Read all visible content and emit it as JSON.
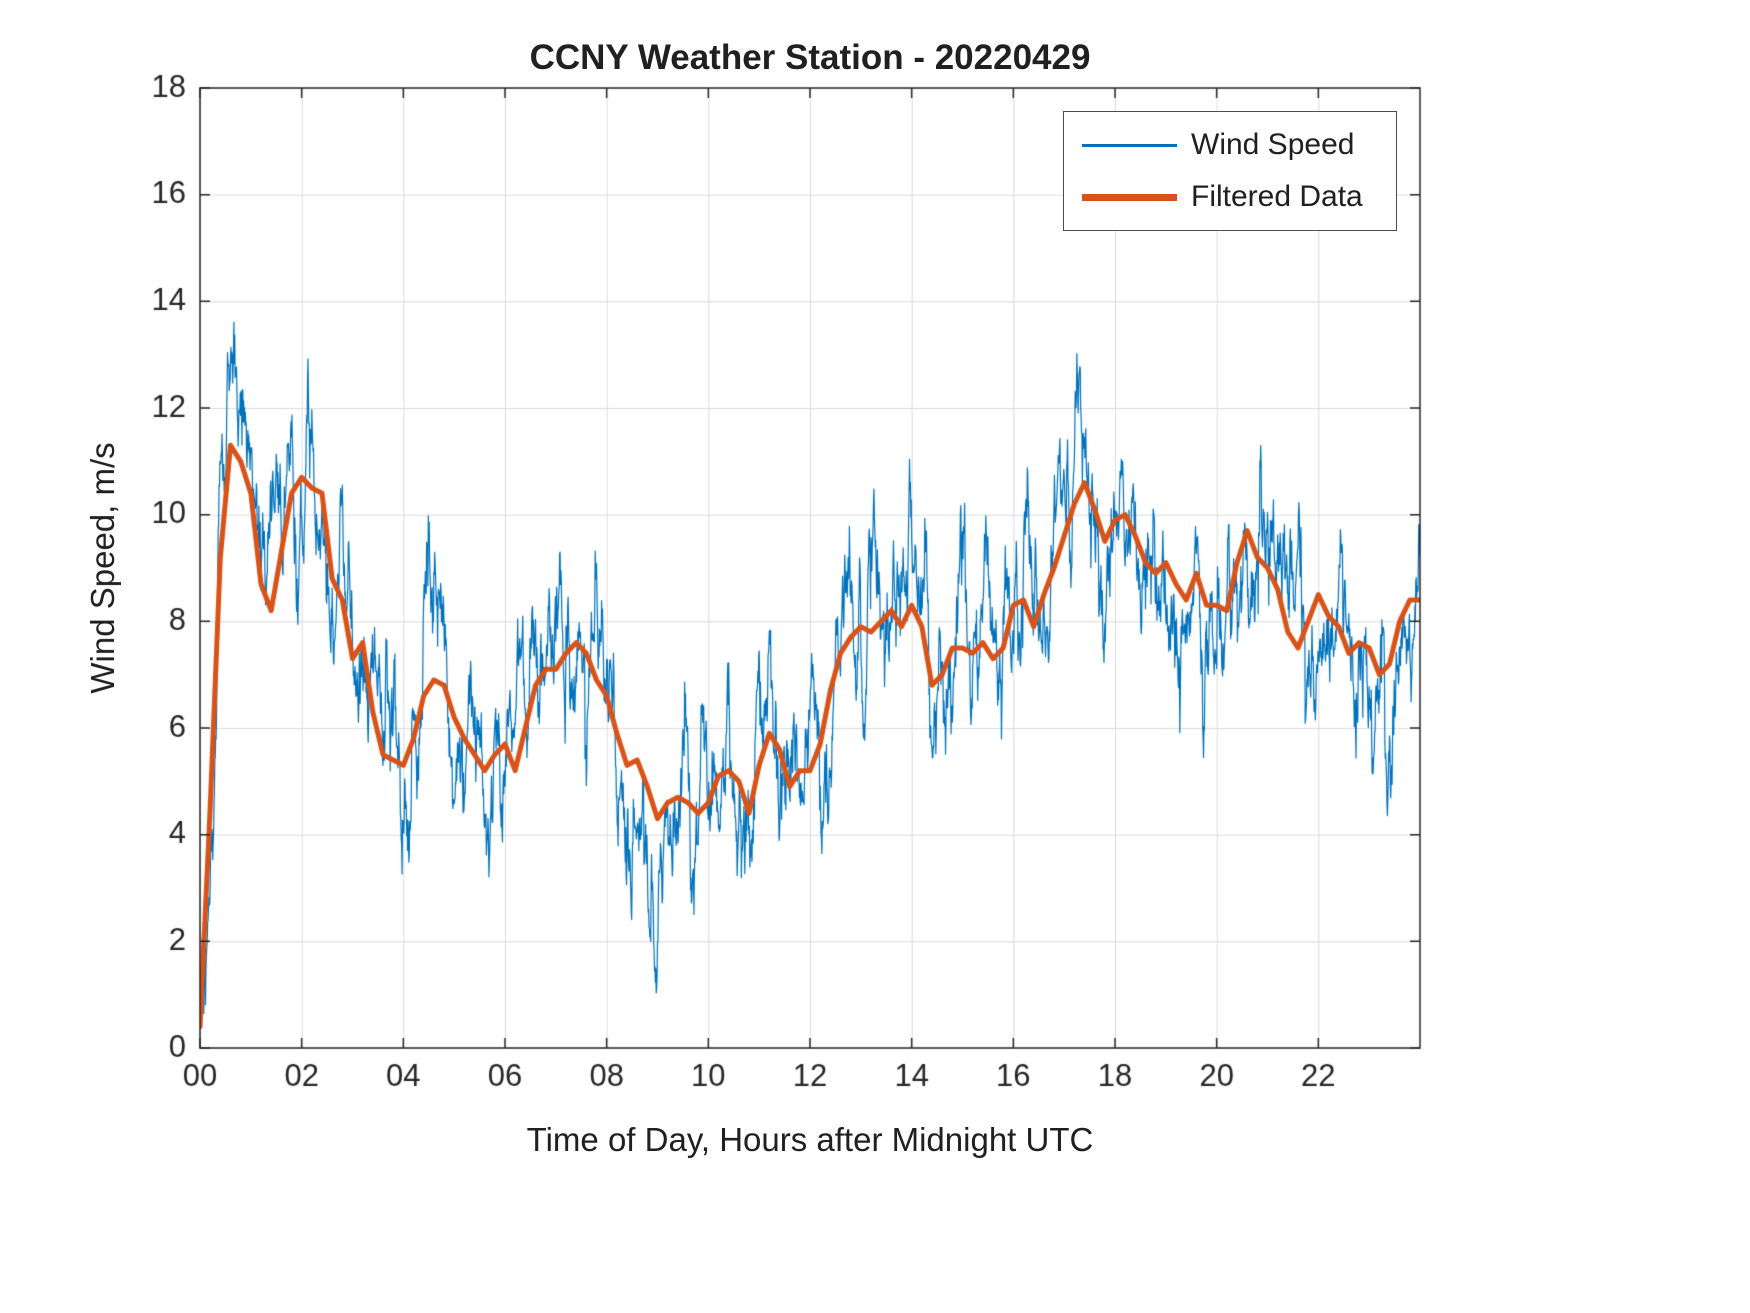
{
  "chart_data": {
    "type": "line",
    "title": "CCNY Weather Station - 20220429",
    "xlabel": "Time of Day, Hours after Midnight UTC",
    "ylabel": "Wind Speed, m/s",
    "xlim": [
      0,
      24
    ],
    "ylim": [
      0,
      18
    ],
    "x_ticks": [
      0,
      2,
      4,
      6,
      8,
      10,
      12,
      14,
      16,
      18,
      20,
      22
    ],
    "x_tick_labels": [
      "00",
      "02",
      "04",
      "06",
      "08",
      "10",
      "12",
      "14",
      "16",
      "18",
      "20",
      "22"
    ],
    "y_ticks": [
      0,
      2,
      4,
      6,
      8,
      10,
      12,
      14,
      16,
      18
    ],
    "y_tick_labels": [
      "0",
      "2",
      "4",
      "6",
      "8",
      "10",
      "12",
      "14",
      "16",
      "18"
    ],
    "grid": true,
    "grid_color": "#DBDBDB",
    "axes_color": "#262626",
    "background": "#FFFFFF",
    "legend": {
      "position": "northeast",
      "entries": [
        {
          "label": "Wind Speed",
          "color": "#0072BD",
          "linewidth": 3
        },
        {
          "label": "Filtered Data",
          "color": "#D95319",
          "linewidth": 7
        }
      ]
    },
    "series": [
      {
        "name": "Wind Speed",
        "color": "#0072BD",
        "linewidth": 1.2,
        "derived_from": "Filtered Data",
        "noise": {
          "seed": 20220429,
          "ar": 0.93,
          "sigma": 0.4,
          "spike_prob": 0.02,
          "spike_gain": 2.2,
          "samples_per_hour": 120,
          "min_clip": 0.15
        }
      },
      {
        "name": "Filtered Data",
        "color": "#D95319",
        "linewidth": 5,
        "step_hours": 0.2,
        "points": [
          [
            0.0,
            0.4
          ],
          [
            0.2,
            4.5
          ],
          [
            0.4,
            9.2
          ],
          [
            0.6,
            11.3
          ],
          [
            0.8,
            11.0
          ],
          [
            1.0,
            10.4
          ],
          [
            1.2,
            8.7
          ],
          [
            1.4,
            8.2
          ],
          [
            1.6,
            9.3
          ],
          [
            1.8,
            10.4
          ],
          [
            2.0,
            10.7
          ],
          [
            2.2,
            10.5
          ],
          [
            2.4,
            10.4
          ],
          [
            2.6,
            8.8
          ],
          [
            2.8,
            8.4
          ],
          [
            3.0,
            7.3
          ],
          [
            3.2,
            7.6
          ],
          [
            3.4,
            6.3
          ],
          [
            3.6,
            5.5
          ],
          [
            3.8,
            5.4
          ],
          [
            4.0,
            5.3
          ],
          [
            4.2,
            5.8
          ],
          [
            4.4,
            6.6
          ],
          [
            4.6,
            6.9
          ],
          [
            4.8,
            6.8
          ],
          [
            5.0,
            6.2
          ],
          [
            5.2,
            5.8
          ],
          [
            5.4,
            5.5
          ],
          [
            5.6,
            5.2
          ],
          [
            5.8,
            5.5
          ],
          [
            6.0,
            5.7
          ],
          [
            6.2,
            5.2
          ],
          [
            6.4,
            6.0
          ],
          [
            6.6,
            6.8
          ],
          [
            6.8,
            7.1
          ],
          [
            7.0,
            7.1
          ],
          [
            7.2,
            7.4
          ],
          [
            7.4,
            7.6
          ],
          [
            7.6,
            7.4
          ],
          [
            7.8,
            6.9
          ],
          [
            8.0,
            6.6
          ],
          [
            8.2,
            5.9
          ],
          [
            8.4,
            5.3
          ],
          [
            8.6,
            5.4
          ],
          [
            8.8,
            4.9
          ],
          [
            9.0,
            4.3
          ],
          [
            9.2,
            4.6
          ],
          [
            9.4,
            4.7
          ],
          [
            9.6,
            4.6
          ],
          [
            9.8,
            4.4
          ],
          [
            10.0,
            4.6
          ],
          [
            10.2,
            5.1
          ],
          [
            10.4,
            5.2
          ],
          [
            10.6,
            5.0
          ],
          [
            10.8,
            4.4
          ],
          [
            11.0,
            5.3
          ],
          [
            11.2,
            5.9
          ],
          [
            11.4,
            5.6
          ],
          [
            11.6,
            4.9
          ],
          [
            11.8,
            5.2
          ],
          [
            12.0,
            5.2
          ],
          [
            12.2,
            5.7
          ],
          [
            12.4,
            6.7
          ],
          [
            12.6,
            7.4
          ],
          [
            12.8,
            7.7
          ],
          [
            13.0,
            7.9
          ],
          [
            13.2,
            7.8
          ],
          [
            13.4,
            8.0
          ],
          [
            13.6,
            8.2
          ],
          [
            13.8,
            7.9
          ],
          [
            14.0,
            8.3
          ],
          [
            14.2,
            7.9
          ],
          [
            14.4,
            6.8
          ],
          [
            14.6,
            7.0
          ],
          [
            14.8,
            7.5
          ],
          [
            15.0,
            7.5
          ],
          [
            15.2,
            7.4
          ],
          [
            15.4,
            7.6
          ],
          [
            15.6,
            7.3
          ],
          [
            15.8,
            7.5
          ],
          [
            16.0,
            8.3
          ],
          [
            16.2,
            8.4
          ],
          [
            16.4,
            7.9
          ],
          [
            16.6,
            8.5
          ],
          [
            16.8,
            9.0
          ],
          [
            17.0,
            9.6
          ],
          [
            17.2,
            10.2
          ],
          [
            17.4,
            10.6
          ],
          [
            17.6,
            10.1
          ],
          [
            17.8,
            9.5
          ],
          [
            18.0,
            9.9
          ],
          [
            18.2,
            10.0
          ],
          [
            18.4,
            9.6
          ],
          [
            18.6,
            9.1
          ],
          [
            18.8,
            8.9
          ],
          [
            19.0,
            9.1
          ],
          [
            19.2,
            8.7
          ],
          [
            19.4,
            8.4
          ],
          [
            19.6,
            8.9
          ],
          [
            19.8,
            8.3
          ],
          [
            20.0,
            8.3
          ],
          [
            20.2,
            8.2
          ],
          [
            20.4,
            9.1
          ],
          [
            20.6,
            9.7
          ],
          [
            20.8,
            9.2
          ],
          [
            21.0,
            9.0
          ],
          [
            21.2,
            8.6
          ],
          [
            21.4,
            7.8
          ],
          [
            21.6,
            7.5
          ],
          [
            21.8,
            8.0
          ],
          [
            22.0,
            8.5
          ],
          [
            22.2,
            8.1
          ],
          [
            22.4,
            7.9
          ],
          [
            22.6,
            7.4
          ],
          [
            22.8,
            7.6
          ],
          [
            23.0,
            7.5
          ],
          [
            23.2,
            7.0
          ],
          [
            23.4,
            7.2
          ],
          [
            23.6,
            8.0
          ],
          [
            23.8,
            8.4
          ],
          [
            24.0,
            8.4
          ]
        ]
      }
    ]
  }
}
